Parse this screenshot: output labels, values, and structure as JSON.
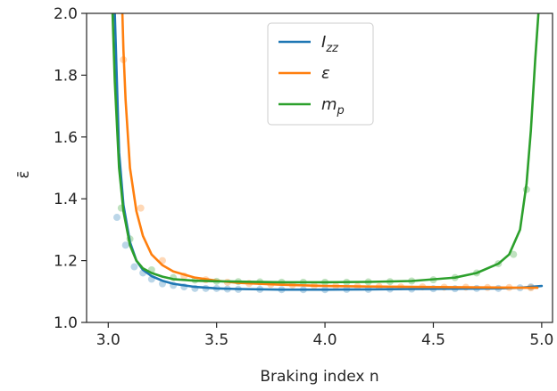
{
  "chart_data": {
    "type": "line",
    "xlabel": "Braking index n",
    "ylabel": "ε̄",
    "xlim": [
      2.9,
      5.05
    ],
    "ylim": [
      1.0,
      2.0
    ],
    "x_ticks": [
      3.0,
      3.5,
      4.0,
      4.5,
      5.0
    ],
    "x_tick_labels": [
      "3.0",
      "3.5",
      "4.0",
      "4.5",
      "5.0"
    ],
    "y_ticks": [
      1.0,
      1.2,
      1.4,
      1.6,
      1.8,
      2.0
    ],
    "y_tick_labels": [
      "1.0",
      "1.2",
      "1.4",
      "1.6",
      "1.8",
      "2.0"
    ],
    "grid": false,
    "legend_position": "top-center",
    "series": [
      {
        "name": "I_zz",
        "legend_main": "I",
        "legend_sub": "zz",
        "color": "#1f77b4",
        "x": [
          3.03,
          3.05,
          3.07,
          3.1,
          3.13,
          3.16,
          3.2,
          3.25,
          3.3,
          3.4,
          3.5,
          3.6,
          3.8,
          4.0,
          4.2,
          4.4,
          4.6,
          4.8,
          4.9,
          5.0
        ],
        "values": [
          2.0,
          1.55,
          1.38,
          1.26,
          1.2,
          1.17,
          1.15,
          1.135,
          1.125,
          1.115,
          1.11,
          1.108,
          1.106,
          1.106,
          1.107,
          1.108,
          1.109,
          1.11,
          1.112,
          1.118
        ]
      },
      {
        "name": "ε",
        "legend_main": "ε",
        "legend_sub": "",
        "color": "#ff7f0e",
        "x": [
          3.065,
          3.07,
          3.08,
          3.1,
          3.13,
          3.16,
          3.2,
          3.25,
          3.3,
          3.4,
          3.5,
          3.6,
          3.8,
          4.0,
          4.2,
          4.4,
          4.6,
          4.8,
          4.9,
          4.98
        ],
        "values": [
          2.0,
          1.88,
          1.72,
          1.5,
          1.36,
          1.28,
          1.22,
          1.185,
          1.165,
          1.145,
          1.135,
          1.128,
          1.122,
          1.118,
          1.116,
          1.115,
          1.114,
          1.113,
          1.112,
          1.112
        ]
      },
      {
        "name": "m_p",
        "legend_main": "m",
        "legend_sub": "p",
        "color": "#2ca02c",
        "x": [
          3.02,
          3.03,
          3.05,
          3.07,
          3.1,
          3.13,
          3.16,
          3.2,
          3.25,
          3.3,
          3.4,
          3.5,
          3.6,
          3.8,
          4.0,
          4.2,
          4.4,
          4.6,
          4.7,
          4.8,
          4.85,
          4.9,
          4.93,
          4.95,
          4.97,
          4.985
        ],
        "values": [
          2.0,
          1.78,
          1.5,
          1.36,
          1.25,
          1.2,
          1.175,
          1.16,
          1.148,
          1.14,
          1.135,
          1.133,
          1.132,
          1.13,
          1.13,
          1.131,
          1.134,
          1.145,
          1.16,
          1.19,
          1.22,
          1.3,
          1.45,
          1.62,
          1.85,
          2.0
        ]
      }
    ],
    "scatter_points": [
      {
        "color": "#1f77b4",
        "x": [
          3.04,
          3.08,
          3.12,
          3.16,
          3.2,
          3.25,
          3.3,
          3.35,
          3.4,
          3.45,
          3.5,
          3.55,
          3.6,
          3.7,
          3.8,
          3.9,
          4.0,
          4.1,
          4.2,
          4.3,
          4.4,
          4.5,
          4.6,
          4.7,
          4.8,
          4.9,
          4.95
        ],
        "values": [
          1.34,
          1.25,
          1.18,
          1.16,
          1.14,
          1.125,
          1.12,
          1.115,
          1.11,
          1.11,
          1.11,
          1.108,
          1.107,
          1.107,
          1.106,
          1.106,
          1.106,
          1.107,
          1.107,
          1.108,
          1.108,
          1.109,
          1.109,
          1.11,
          1.11,
          1.112,
          1.115
        ]
      },
      {
        "color": "#ff7f0e",
        "x": [
          3.07,
          3.15,
          3.25,
          3.35,
          3.45,
          3.55,
          3.65,
          3.75,
          3.85,
          3.95,
          4.05,
          4.15,
          4.25,
          4.35,
          4.45,
          4.55,
          4.65,
          4.75,
          4.85,
          4.95
        ],
        "values": [
          1.85,
          1.37,
          1.2,
          1.15,
          1.138,
          1.13,
          1.126,
          1.123,
          1.121,
          1.119,
          1.118,
          1.117,
          1.116,
          1.115,
          1.115,
          1.114,
          1.114,
          1.113,
          1.113,
          1.112
        ]
      },
      {
        "color": "#2ca02c",
        "x": [
          3.06,
          3.1,
          3.2,
          3.3,
          3.4,
          3.5,
          3.6,
          3.7,
          3.8,
          3.9,
          4.0,
          4.1,
          4.2,
          4.3,
          4.4,
          4.5,
          4.6,
          4.7,
          4.8,
          4.87,
          4.93
        ],
        "values": [
          1.37,
          1.27,
          1.17,
          1.145,
          1.137,
          1.133,
          1.132,
          1.131,
          1.13,
          1.13,
          1.13,
          1.13,
          1.131,
          1.132,
          1.134,
          1.138,
          1.145,
          1.16,
          1.19,
          1.22,
          1.43
        ]
      }
    ]
  }
}
